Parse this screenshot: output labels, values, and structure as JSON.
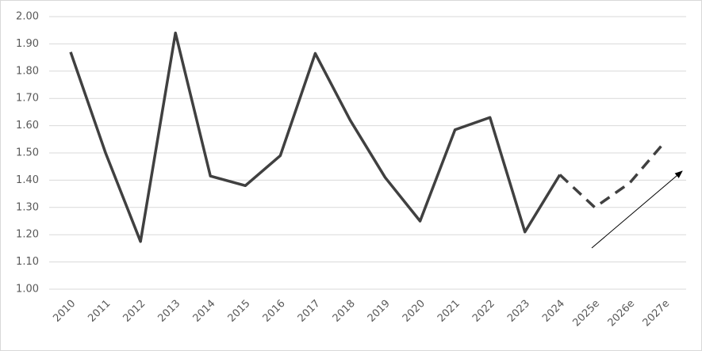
{
  "chart_data": {
    "type": "line",
    "categories": [
      "2010",
      "2011",
      "2012",
      "2013",
      "2014",
      "2015",
      "2016",
      "2017",
      "2018",
      "2019",
      "2020",
      "2021",
      "2022",
      "2023",
      "2024",
      "2025e",
      "2026e",
      "2027e"
    ],
    "series": [
      {
        "color": "#404040",
        "dashed": false,
        "values": [
          1.87,
          1.5,
          1.175,
          1.94,
          1.415,
          1.38,
          1.49,
          1.865,
          1.62,
          1.41,
          1.25,
          1.585,
          1.63,
          1.21,
          1.42,
          null,
          null,
          null
        ]
      },
      {
        "color": "#404040",
        "dashed": true,
        "values": [
          null,
          null,
          null,
          null,
          null,
          null,
          null,
          null,
          null,
          null,
          null,
          null,
          null,
          null,
          1.42,
          1.3,
          1.39,
          1.54
        ]
      }
    ],
    "ylim": [
      1.0,
      2.0
    ],
    "yticks": [
      {
        "value": 1.0,
        "label": "1.00"
      },
      {
        "value": 1.1,
        "label": "1.10"
      },
      {
        "value": 1.2,
        "label": "1.20"
      },
      {
        "value": 1.3,
        "label": "1.30"
      },
      {
        "value": 1.4,
        "label": "1.40"
      },
      {
        "value": 1.5,
        "label": "1.50"
      },
      {
        "value": 1.6,
        "label": "1.60"
      },
      {
        "value": 1.7,
        "label": "1.70"
      },
      {
        "value": 1.8,
        "label": "1.80"
      },
      {
        "value": 1.9,
        "label": "1.90"
      },
      {
        "value": 2.0,
        "label": "2.00"
      }
    ],
    "grid": true
  }
}
